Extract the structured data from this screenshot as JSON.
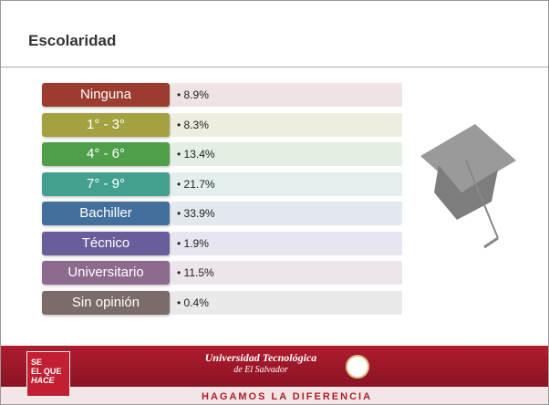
{
  "header": {
    "title": "Escolaridad"
  },
  "rows": [
    {
      "label": "Ninguna",
      "value": "8.9%",
      "color": "#9c3b2f",
      "tint": "#efe3e3"
    },
    {
      "label": "1° - 3°",
      "value": "8.3%",
      "color": "#a3a140",
      "tint": "#eeeee0"
    },
    {
      "label": "4° - 6°",
      "value": "13.4%",
      "color": "#4f9f4a",
      "tint": "#e3efe3"
    },
    {
      "label": "7° - 9°",
      "value": "21.7%",
      "color": "#43a08f",
      "tint": "#e2efec"
    },
    {
      "label": "Bachiller",
      "value": "33.9%",
      "color": "#426f9c",
      "tint": "#e3e8ef"
    },
    {
      "label": "Técnico",
      "value": "1.9%",
      "color": "#6b5d9c",
      "tint": "#e7e5ef"
    },
    {
      "label": "Universitario",
      "value": "11.5%",
      "color": "#8c6b8f",
      "tint": "#ece5ec"
    },
    {
      "label": "Sin opinión",
      "value": "0.4%",
      "color": "#7b6b6b",
      "tint": "#ebe8e8"
    }
  ],
  "footer": {
    "badge": [
      "SE",
      "EL QUE",
      "HACE"
    ],
    "university": "Universidad Tecnológica",
    "subtitle": "de El Salvador",
    "slogan": "HAGAMOS LA DIFERENCIA"
  }
}
